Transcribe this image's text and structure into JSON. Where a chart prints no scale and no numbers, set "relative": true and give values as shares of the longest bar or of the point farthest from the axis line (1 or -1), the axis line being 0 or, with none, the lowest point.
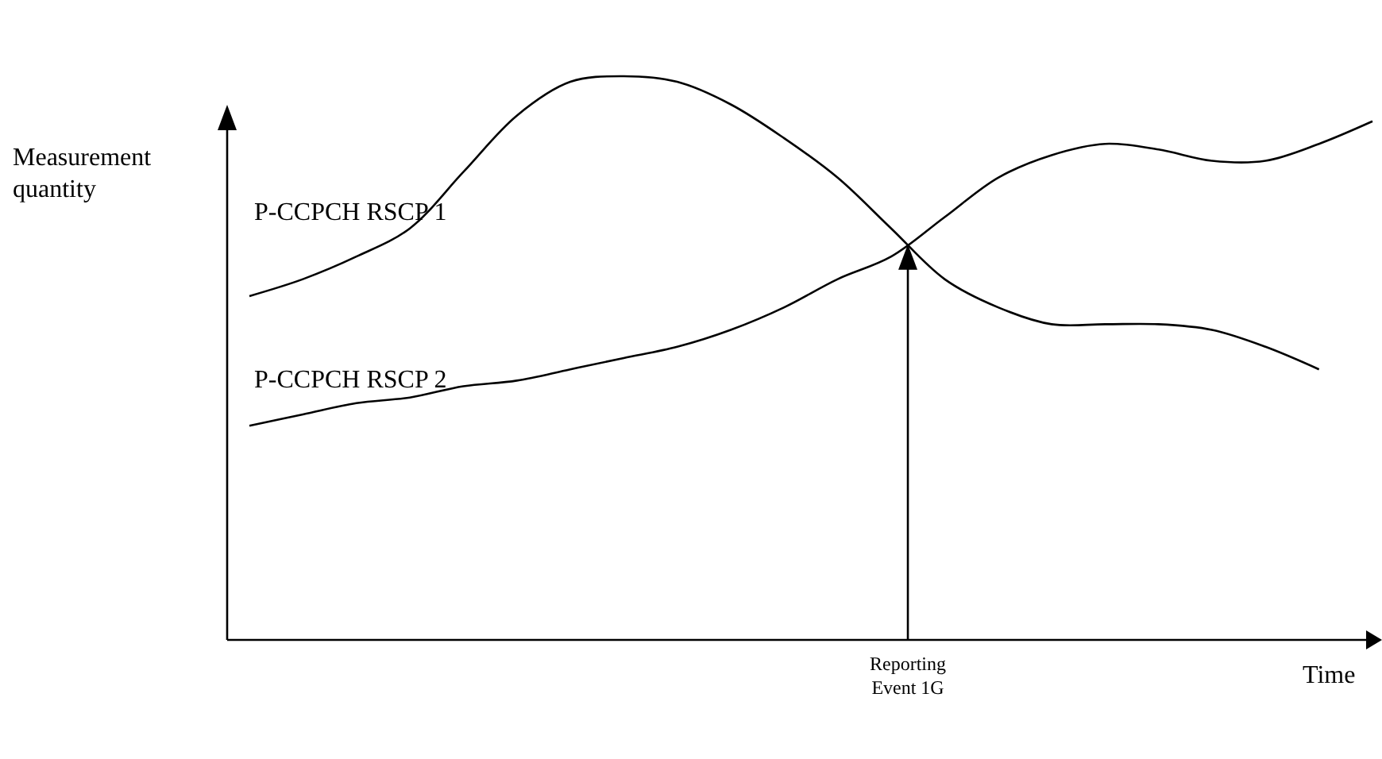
{
  "chart_data": {
    "type": "line",
    "relative": true,
    "xlabel": "Time",
    "ylabel": "Measurement quantity",
    "categories": [
      null,
      null,
      null,
      null,
      null,
      null,
      null,
      null,
      null,
      null,
      null,
      null,
      null,
      null,
      null,
      null,
      null,
      null,
      null,
      null,
      null,
      null
    ],
    "series": [
      {
        "name": "P-CCPCH RSCP 1",
        "color": "#000000",
        "values": [
          0.61,
          0.64,
          0.68,
          0.73,
          0.83,
          0.93,
          0.99,
          1,
          0.99,
          0.95,
          0.89,
          0.82,
          0.73,
          0.64,
          0.59,
          0.56,
          0.56,
          0.56,
          0.55,
          0.52,
          0.48,
          null
        ]
      },
      {
        "name": "P-CCPCH RSCP 2",
        "color": "#000000",
        "values": [
          0.38,
          0.4,
          0.42,
          0.43,
          0.45,
          0.46,
          0.48,
          0.5,
          0.52,
          0.55,
          0.59,
          0.64,
          0.68,
          0.75,
          0.82,
          0.86,
          0.88,
          0.87,
          0.85,
          0.85,
          0.88,
          0.92
        ]
      }
    ],
    "annotations": [
      "Reporting Event 1G"
    ],
    "marker": "none",
    "line_style": "solid"
  }
}
